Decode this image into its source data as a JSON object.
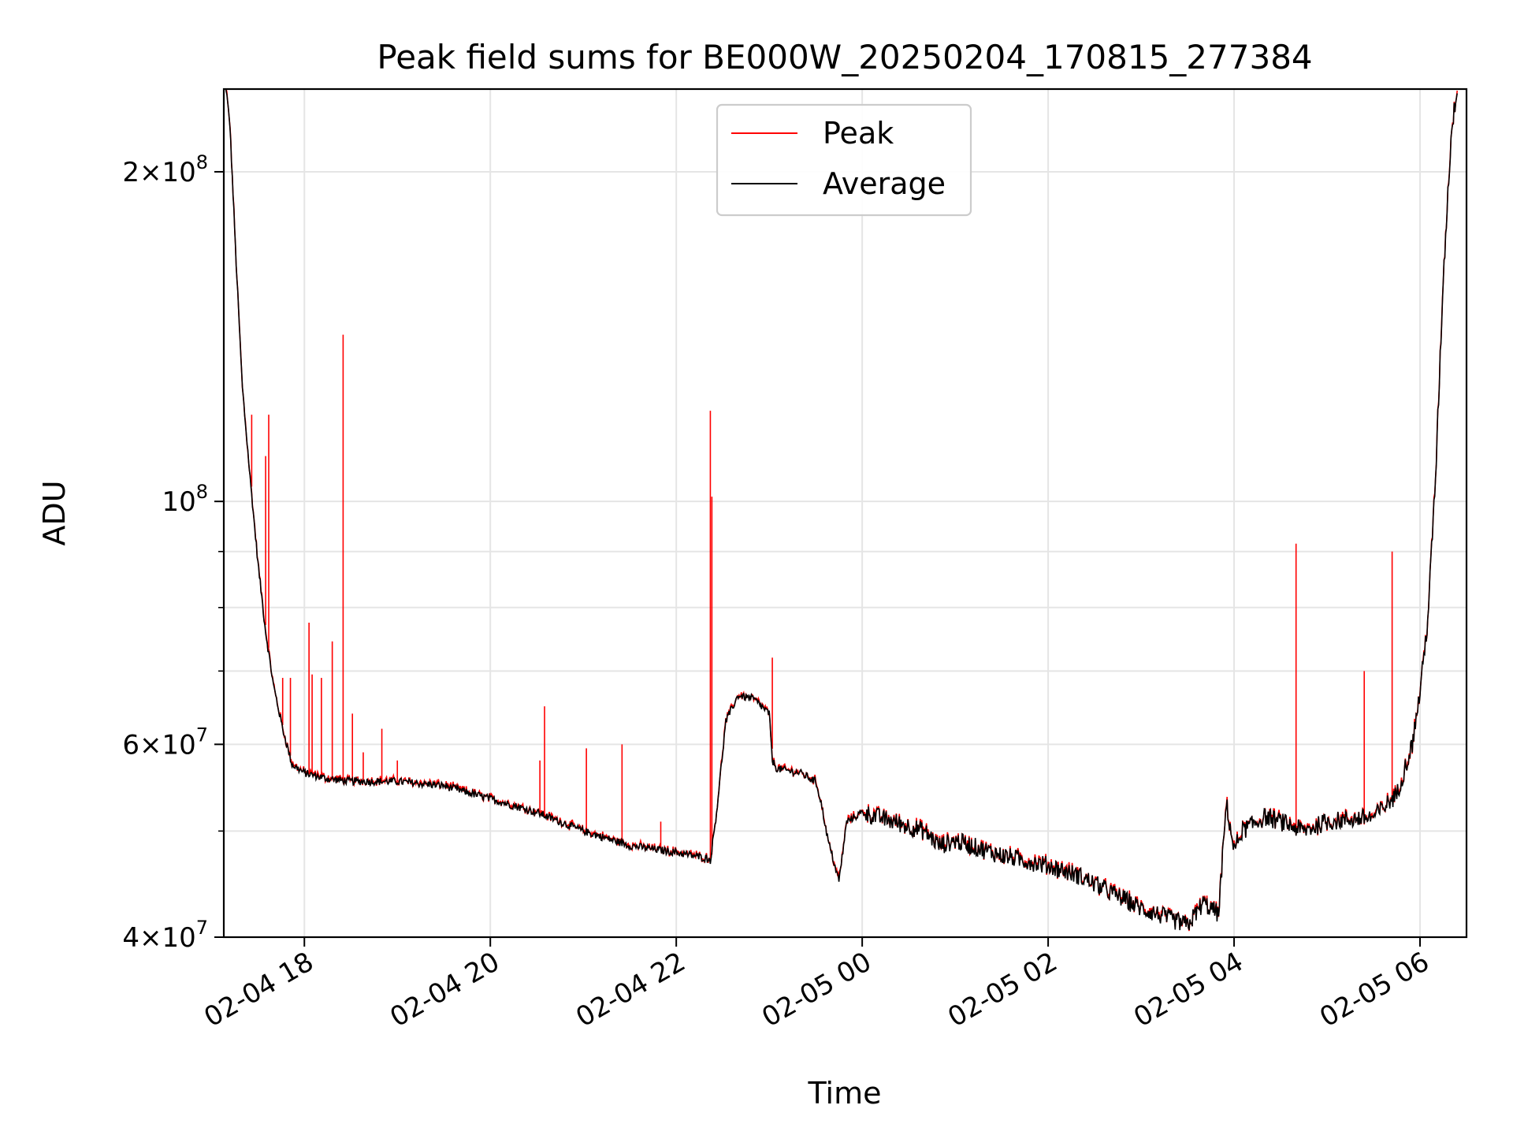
{
  "chart_data": {
    "type": "line",
    "title": "Peak field sums for BE000W_20250204_170815_277384",
    "xlabel": "Time",
    "ylabel": "ADU",
    "yscale": "log",
    "ylim": [
      40000000,
      238000000
    ],
    "xlim": [
      "2025-02-04 17:08",
      "2025-02-05 06:30"
    ],
    "grid": true,
    "legend_position": "top-center",
    "x_ticks": [
      {
        "t": "2025-02-04 18:00",
        "label": "02-04 18"
      },
      {
        "t": "2025-02-04 20:00",
        "label": "02-04 20"
      },
      {
        "t": "2025-02-04 22:00",
        "label": "02-04 22"
      },
      {
        "t": "2025-02-05 00:00",
        "label": "02-05 00"
      },
      {
        "t": "2025-02-05 02:00",
        "label": "02-05 02"
      },
      {
        "t": "2025-02-05 04:00",
        "label": "02-05 04"
      },
      {
        "t": "2025-02-05 06:00",
        "label": "02-05 06"
      }
    ],
    "y_major_ticks": [
      {
        "v": 40000000,
        "base": "4",
        "exp": "7"
      },
      {
        "v": 60000000,
        "base": "6",
        "exp": "7"
      },
      {
        "v": 100000000,
        "base": "",
        "exp": "8"
      },
      {
        "v": 200000000,
        "base": "2",
        "exp": "8"
      }
    ],
    "y_minor_grid": [
      50000000,
      70000000,
      80000000,
      90000000
    ],
    "series": [
      {
        "name": "Average",
        "color": "#000000",
        "x": [
          "2025-02-04 17:08",
          "2025-02-04 17:12",
          "2025-02-04 17:16",
          "2025-02-04 17:20",
          "2025-02-04 17:25",
          "2025-02-04 17:30",
          "2025-02-04 17:35",
          "2025-02-04 17:40",
          "2025-02-04 17:46",
          "2025-02-04 17:52",
          "2025-02-04 18:00",
          "2025-02-04 18:15",
          "2025-02-04 18:30",
          "2025-02-04 19:00",
          "2025-02-04 19:30",
          "2025-02-04 20:00",
          "2025-02-04 20:30",
          "2025-02-04 21:00",
          "2025-02-04 21:30",
          "2025-02-04 22:00",
          "2025-02-04 22:20",
          "2025-02-04 22:22",
          "2025-02-04 22:26",
          "2025-02-04 22:32",
          "2025-02-04 22:40",
          "2025-02-04 22:50",
          "2025-02-04 23:00",
          "2025-02-04 23:02",
          "2025-02-04 23:05",
          "2025-02-04 23:20",
          "2025-02-04 23:30",
          "2025-02-04 23:33",
          "2025-02-04 23:38",
          "2025-02-04 23:45",
          "2025-02-04 23:50",
          "2025-02-05 00:00",
          "2025-02-05 00:20",
          "2025-02-05 00:40",
          "2025-02-05 00:50",
          "2025-02-05 01:00",
          "2025-02-05 01:30",
          "2025-02-05 02:00",
          "2025-02-05 02:20",
          "2025-02-05 02:40",
          "2025-02-05 03:00",
          "2025-02-05 03:20",
          "2025-02-05 03:30",
          "2025-02-05 03:40",
          "2025-02-05 03:50",
          "2025-02-05 03:55",
          "2025-02-05 04:00",
          "2025-02-05 04:05",
          "2025-02-05 04:20",
          "2025-02-05 04:30",
          "2025-02-05 04:45",
          "2025-02-05 05:00",
          "2025-02-05 05:30",
          "2025-02-05 05:45",
          "2025-02-05 05:55",
          "2025-02-05 06:00",
          "2025-02-05 06:05",
          "2025-02-05 06:10",
          "2025-02-05 06:15",
          "2025-02-05 06:20",
          "2025-02-05 06:24"
        ],
        "values": [
          250000000,
          220000000,
          165000000,
          127000000,
          105000000,
          88000000,
          76000000,
          68000000,
          62000000,
          57500000,
          56500000,
          55800000,
          55500000,
          55500000,
          55000000,
          53500000,
          52000000,
          50000000,
          48500000,
          47800000,
          47200000,
          47000000,
          52000000,
          63000000,
          66500000,
          66000000,
          64000000,
          58000000,
          57000000,
          56500000,
          55500000,
          53500000,
          49000000,
          45000000,
          51000000,
          52000000,
          51000000,
          50000000,
          48500000,
          49000000,
          47500000,
          46500000,
          45500000,
          44000000,
          42500000,
          41500000,
          41000000,
          43000000,
          42000000,
          53000000,
          48000000,
          50000000,
          51500000,
          51000000,
          50000000,
          51000000,
          51500000,
          54000000,
          60000000,
          67000000,
          78000000,
          105000000,
          160000000,
          215000000,
          240000000
        ]
      },
      {
        "name": "Peak",
        "color": "#ff0000",
        "spikes": [
          {
            "t": "2025-02-04 17:26",
            "v": 120000000
          },
          {
            "t": "2025-02-04 17:35",
            "v": 110000000
          },
          {
            "t": "2025-02-04 17:37",
            "v": 120000000
          },
          {
            "t": "2025-02-04 17:46",
            "v": 69000000
          },
          {
            "t": "2025-02-04 17:51",
            "v": 69000000
          },
          {
            "t": "2025-02-04 18:03",
            "v": 77500000
          },
          {
            "t": "2025-02-04 18:05",
            "v": 69500000
          },
          {
            "t": "2025-02-04 18:11",
            "v": 69000000
          },
          {
            "t": "2025-02-04 18:18",
            "v": 74500000
          },
          {
            "t": "2025-02-04 18:25",
            "v": 142000000
          },
          {
            "t": "2025-02-04 18:31",
            "v": 64000000
          },
          {
            "t": "2025-02-04 18:38",
            "v": 59000000
          },
          {
            "t": "2025-02-04 18:50",
            "v": 62000000
          },
          {
            "t": "2025-02-04 19:00",
            "v": 58000000
          },
          {
            "t": "2025-02-04 20:32",
            "v": 58000000
          },
          {
            "t": "2025-02-04 20:35",
            "v": 65000000
          },
          {
            "t": "2025-02-04 21:02",
            "v": 59500000
          },
          {
            "t": "2025-02-04 21:25",
            "v": 60000000
          },
          {
            "t": "2025-02-04 21:50",
            "v": 51000000
          },
          {
            "t": "2025-02-04 22:22",
            "v": 121000000
          },
          {
            "t": "2025-02-04 22:23",
            "v": 101000000
          },
          {
            "t": "2025-02-04 23:02",
            "v": 72000000
          },
          {
            "t": "2025-02-05 04:40",
            "v": 91500000
          },
          {
            "t": "2025-02-05 05:24",
            "v": 70000000
          },
          {
            "t": "2025-02-05 05:42",
            "v": 90000000
          }
        ]
      }
    ]
  }
}
